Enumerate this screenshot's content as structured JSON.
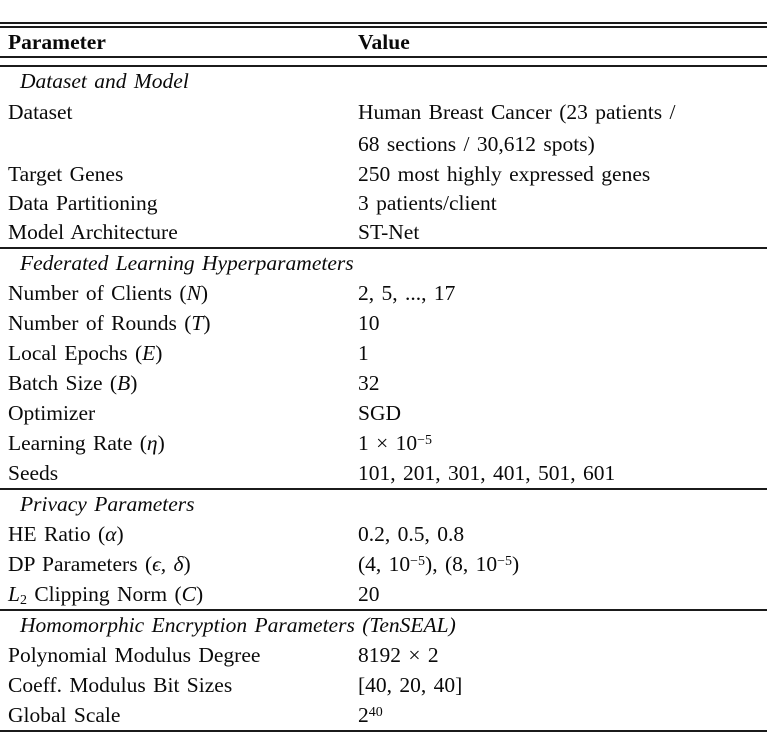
{
  "colors": {
    "background": "#ffffff",
    "text": "#0a0a0a",
    "rule": "#1b1b1b"
  },
  "table": {
    "header": {
      "param": "Parameter",
      "value": "Value"
    },
    "sections": [
      {
        "title": "Dataset and Model",
        "rows": [
          {
            "tall": true,
            "param": [
              {
                "t": "Dataset"
              }
            ],
            "value": [
              {
                "t": "Human Breast Cancer (23 patients /"
              },
              {
                "br": true
              },
              {
                "t": "68 sections / 30,612 spots)"
              }
            ]
          },
          {
            "param": [
              {
                "t": "Target Genes"
              }
            ],
            "value": [
              {
                "t": "250 most highly expressed genes"
              }
            ]
          },
          {
            "param": [
              {
                "t": "Data Partitioning"
              }
            ],
            "value": [
              {
                "t": "3 patients/client"
              }
            ]
          },
          {
            "param": [
              {
                "t": "Model Architecture"
              }
            ],
            "value": [
              {
                "t": "ST-Net"
              }
            ]
          }
        ]
      },
      {
        "title": "Federated Learning Hyperparameters",
        "rows": [
          {
            "param": [
              {
                "t": "Number of Clients ("
              },
              {
                "t": "N",
                "s": "i"
              },
              {
                "t": ")"
              }
            ],
            "value": [
              {
                "t": "2, 5, ..., 17"
              }
            ]
          },
          {
            "param": [
              {
                "t": "Number of Rounds ("
              },
              {
                "t": "T",
                "s": "i"
              },
              {
                "t": ")"
              }
            ],
            "value": [
              {
                "t": "10"
              }
            ]
          },
          {
            "param": [
              {
                "t": "Local Epochs ("
              },
              {
                "t": "E",
                "s": "i"
              },
              {
                "t": ")"
              }
            ],
            "value": [
              {
                "t": "1"
              }
            ]
          },
          {
            "param": [
              {
                "t": "Batch Size ("
              },
              {
                "t": "B",
                "s": "i"
              },
              {
                "t": ")"
              }
            ],
            "value": [
              {
                "t": "32"
              }
            ]
          },
          {
            "param": [
              {
                "t": "Optimizer"
              }
            ],
            "value": [
              {
                "t": "SGD"
              }
            ]
          },
          {
            "param": [
              {
                "t": "Learning Rate ("
              },
              {
                "t": "η",
                "s": "i"
              },
              {
                "t": ")"
              }
            ],
            "value": [
              {
                "t": "1 × 10"
              },
              {
                "t": "−5",
                "s": "sup"
              }
            ]
          },
          {
            "param": [
              {
                "t": "Seeds"
              }
            ],
            "value": [
              {
                "t": "101, 201, 301, 401, 501, 601"
              }
            ]
          }
        ]
      },
      {
        "title": "Privacy Parameters",
        "rows": [
          {
            "param": [
              {
                "t": "HE Ratio ("
              },
              {
                "t": "α",
                "s": "i"
              },
              {
                "t": ")"
              }
            ],
            "value": [
              {
                "t": "0.2, 0.5, 0.8"
              }
            ]
          },
          {
            "param": [
              {
                "t": "DP Parameters ("
              },
              {
                "t": "ϵ, δ",
                "s": "i"
              },
              {
                "t": ")"
              }
            ],
            "value": [
              {
                "t": "(4, 10"
              },
              {
                "t": "−5",
                "s": "sup"
              },
              {
                "t": "),  (8, 10"
              },
              {
                "t": "−5",
                "s": "sup"
              },
              {
                "t": ")"
              }
            ]
          },
          {
            "param": [
              {
                "t": "L",
                "s": "i"
              },
              {
                "t": "2",
                "s": "sub"
              },
              {
                "t": " Clipping Norm ("
              },
              {
                "t": "C",
                "s": "i"
              },
              {
                "t": ")"
              }
            ],
            "value": [
              {
                "t": "20"
              }
            ]
          }
        ]
      },
      {
        "title": "Homomorphic Encryption Parameters (TenSEAL)",
        "rows": [
          {
            "param": [
              {
                "t": "Polynomial Modulus Degree"
              }
            ],
            "value": [
              {
                "t": "8192 × 2"
              }
            ]
          },
          {
            "param": [
              {
                "t": "Coeff. Modulus Bit Sizes"
              }
            ],
            "value": [
              {
                "t": "[40, 20, 40]"
              }
            ]
          },
          {
            "param": [
              {
                "t": "Global Scale"
              }
            ],
            "value": [
              {
                "t": "2"
              },
              {
                "t": "40",
                "s": "sup"
              }
            ]
          }
        ]
      }
    ]
  }
}
